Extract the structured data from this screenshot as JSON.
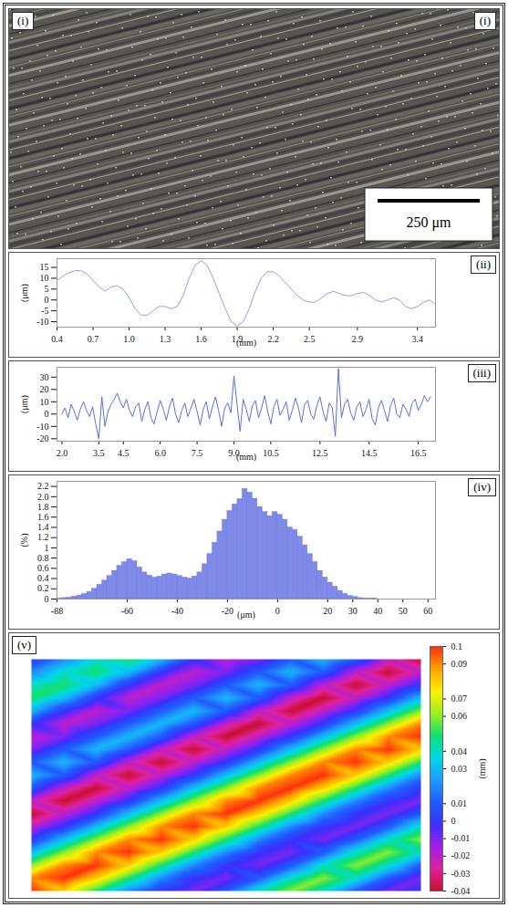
{
  "chart_data": [
    {
      "type": "image",
      "panel_labels": [
        "(i)",
        "(i)"
      ],
      "scale_bar": "250 μm"
    },
    {
      "type": "line",
      "panel_label": "(ii)",
      "xlabel": "(mm)",
      "ylabel": "(μm)",
      "color": "#8f9fe6",
      "grid": false,
      "xlim": [
        0.4,
        3.55
      ],
      "ylim": [
        -12.5,
        19
      ],
      "xticks": [
        0.4,
        0.7,
        {
          "value": 1,
          "label": "1.0"
        },
        1.3,
        1.6,
        1.9,
        2.2,
        2.5,
        2.9,
        3.4
      ],
      "yticks": [
        -10,
        -5,
        0,
        5,
        10,
        15
      ],
      "x": [
        0.4,
        0.45,
        0.5,
        0.55,
        0.6,
        0.65,
        0.7,
        0.75,
        0.8,
        0.85,
        0.9,
        0.95,
        1,
        1.05,
        1.1,
        1.15,
        1.2,
        1.25,
        1.3,
        1.35,
        1.4,
        1.45,
        1.5,
        1.55,
        1.6,
        1.65,
        1.7,
        1.75,
        1.8,
        1.85,
        1.9,
        1.95,
        2,
        2.05,
        2.1,
        2.15,
        2.2,
        2.25,
        2.3,
        2.35,
        2.4,
        2.45,
        2.5,
        2.55,
        2.6,
        2.65,
        2.7,
        2.75,
        2.8,
        2.85,
        2.9,
        2.95,
        3,
        3.05,
        3.1,
        3.15,
        3.2,
        3.25,
        3.3,
        3.35,
        3.4,
        3.45,
        3.5,
        3.55
      ],
      "values": [
        9,
        11,
        12.5,
        13.5,
        13.5,
        12,
        9,
        6,
        4,
        6,
        6.5,
        5,
        1,
        -4,
        -7,
        -7,
        -5,
        -3,
        -3,
        -4,
        -3,
        2,
        10,
        16,
        18,
        16,
        10,
        3,
        -4,
        -10,
        -12,
        -10,
        -4,
        4,
        10,
        13,
        13,
        11,
        8,
        5,
        2,
        0,
        -1,
        -1,
        1,
        3,
        4,
        3,
        2,
        2,
        3,
        3.5,
        2,
        0,
        -1,
        0,
        1,
        0,
        -3,
        -4,
        -3,
        -1,
        0,
        -2
      ]
    },
    {
      "type": "line",
      "panel_label": "(iii)",
      "xlabel": "(mm)",
      "ylabel": "(μm)",
      "color": "#5b6fdc",
      "grid": false,
      "xlim": [
        1.8,
        17.2
      ],
      "ylim": [
        -22,
        38
      ],
      "xticks": [
        {
          "value": 2,
          "label": "2.0"
        },
        3.5,
        4.5,
        {
          "value": 6,
          "label": "6.0"
        },
        7.5,
        {
          "value": 9,
          "label": "9.0"
        },
        10.5,
        12.5,
        14.5,
        16.5
      ],
      "yticks": [
        -20,
        -10,
        0,
        10,
        20,
        30
      ],
      "x": [
        2,
        2.125,
        2.25,
        2.375,
        2.5,
        2.625,
        2.75,
        2.875,
        3,
        3.125,
        3.25,
        3.375,
        3.5,
        3.625,
        3.75,
        3.875,
        4,
        4.125,
        4.25,
        4.375,
        4.5,
        4.625,
        4.75,
        4.875,
        5,
        5.125,
        5.25,
        5.375,
        5.5,
        5.625,
        5.75,
        5.875,
        6,
        6.125,
        6.25,
        6.375,
        6.5,
        6.625,
        6.75,
        6.875,
        7,
        7.125,
        7.25,
        7.375,
        7.5,
        7.625,
        7.75,
        7.875,
        8,
        8.125,
        8.25,
        8.375,
        8.5,
        8.625,
        8.75,
        8.875,
        9,
        9.125,
        9.25,
        9.375,
        9.5,
        9.625,
        9.75,
        9.875,
        10,
        10.125,
        10.25,
        10.375,
        10.5,
        10.625,
        10.75,
        10.875,
        11,
        11.125,
        11.25,
        11.375,
        11.5,
        11.625,
        11.75,
        11.875,
        12,
        12.125,
        12.25,
        12.375,
        12.5,
        12.625,
        12.75,
        12.875,
        13,
        13.125,
        13.25,
        13.375,
        13.5,
        13.625,
        13.75,
        13.875,
        14,
        14.125,
        14.25,
        14.375,
        14.5,
        14.625,
        14.75,
        14.875,
        15,
        15.125,
        15.25,
        15.375,
        15.5,
        15.625,
        15.75,
        15.875,
        16,
        16.125,
        16.25,
        16.375,
        16.5,
        16.625,
        16.75,
        16.875,
        17
      ],
      "values": [
        0,
        5,
        -3,
        8,
        2,
        -5,
        4,
        10,
        3,
        -2,
        6,
        -8,
        -20,
        14,
        -10,
        2,
        8,
        12,
        17,
        10,
        5,
        12,
        3,
        -2,
        6,
        9,
        -6,
        4,
        10,
        -3,
        -8,
        2,
        11,
        4,
        -5,
        6,
        13,
        0,
        -7,
        3,
        9,
        -2,
        5,
        12,
        2,
        -9,
        4,
        10,
        -4,
        6,
        14,
        3,
        -10,
        5,
        9,
        1,
        31,
        8,
        -14,
        12,
        4,
        -6,
        7,
        11,
        -3,
        5,
        15,
        2,
        -8,
        6,
        12,
        -1,
        4,
        10,
        -5,
        3,
        13,
        5,
        -7,
        8,
        11,
        0,
        -4,
        7,
        14,
        2,
        -6,
        9,
        5,
        -18,
        37,
        -3,
        8,
        12,
        1,
        -5,
        6,
        10,
        -2,
        4,
        12,
        -4,
        -9,
        5,
        11,
        3,
        -6,
        7,
        13,
        0,
        -3,
        8,
        4,
        -2,
        9,
        12,
        3,
        8,
        15,
        10,
        14
      ]
    },
    {
      "type": "histogram",
      "panel_label": "(iv)",
      "xlabel": "(μm)",
      "ylabel": "(%)",
      "color": "#7f8ae8",
      "grid": false,
      "xlim": [
        -88,
        63
      ],
      "ylim": [
        0,
        2.3
      ],
      "xticks": [
        -88,
        -60,
        -40,
        -20,
        0,
        20,
        30,
        40,
        50,
        60
      ],
      "yticks": [
        0,
        0.2,
        0.4,
        0.6,
        0.8,
        1,
        1.2,
        1.4,
        1.6,
        1.8,
        {
          "value": 2,
          "label": "2.0"
        },
        2.2
      ],
      "bins": [
        -88,
        -86,
        -84,
        -82,
        -80,
        -78,
        -76,
        -74,
        -72,
        -70,
        -68,
        -66,
        -64,
        -62,
        -60,
        -58,
        -56,
        -54,
        -52,
        -50,
        -48,
        -46,
        -44,
        -42,
        -40,
        -38,
        -36,
        -34,
        -32,
        -30,
        -28,
        -26,
        -24,
        -22,
        -20,
        -18,
        -16,
        -14,
        -12,
        -10,
        -8,
        -6,
        -4,
        -2,
        0,
        2,
        4,
        6,
        8,
        10,
        12,
        14,
        16,
        18,
        20,
        22,
        24,
        26,
        28,
        30,
        32,
        34,
        36,
        38,
        40,
        42,
        44,
        46,
        48,
        50,
        52,
        54,
        56,
        58,
        60
      ],
      "values": [
        0.01,
        0.02,
        0.03,
        0.05,
        0.07,
        0.1,
        0.14,
        0.2,
        0.28,
        0.36,
        0.45,
        0.55,
        0.65,
        0.72,
        0.78,
        0.74,
        0.62,
        0.52,
        0.46,
        0.42,
        0.44,
        0.48,
        0.5,
        0.48,
        0.45,
        0.42,
        0.4,
        0.44,
        0.52,
        0.68,
        0.88,
        1.1,
        1.32,
        1.55,
        1.72,
        1.85,
        1.95,
        2.15,
        2.08,
        1.96,
        1.8,
        1.7,
        1.62,
        1.7,
        1.65,
        1.55,
        1.4,
        1.35,
        1.22,
        1.05,
        0.88,
        0.72,
        0.55,
        0.42,
        0.32,
        0.24,
        0.16,
        0.1,
        0.06,
        0.04,
        0.02,
        0.01,
        0.01,
        0.005,
        0,
        0,
        0,
        0,
        0,
        0,
        0,
        0,
        0,
        0
      ]
    },
    {
      "type": "heatmap",
      "panel_label": "(v)",
      "z": [
        [
          0,
          0.02,
          0.04,
          0.05,
          0.03,
          0,
          -0.02,
          -0.01,
          0.01,
          0.03,
          0.01,
          -0.02,
          -0.04
        ],
        [
          0.02,
          0.04,
          0.05,
          0.03,
          0,
          -0.02,
          -0.01,
          0.01,
          0.03,
          0.01,
          -0.02,
          -0.04,
          -0.02
        ],
        [
          0.04,
          0.05,
          0.03,
          0,
          -0.02,
          -0.01,
          0.01,
          0.03,
          0.01,
          -0.02,
          -0.04,
          -0.02,
          0
        ],
        [
          0.05,
          0.03,
          0,
          -0.02,
          -0.01,
          0.01,
          0.03,
          0.01,
          -0.02,
          -0.04,
          -0.02,
          0,
          0.03
        ],
        [
          0.03,
          0,
          -0.02,
          -0.01,
          0.01,
          0.03,
          0.01,
          -0.02,
          -0.04,
          -0.02,
          0,
          0.03,
          0.06
        ],
        [
          0,
          -0.02,
          -0.01,
          0.01,
          0.03,
          0.01,
          -0.02,
          -0.04,
          -0.02,
          0,
          0.03,
          0.06,
          0.09
        ],
        [
          -0.02,
          -0.01,
          0.01,
          0.03,
          0.01,
          -0.02,
          -0.04,
          -0.02,
          0,
          0.03,
          0.06,
          0.09,
          0.1
        ],
        [
          -0.01,
          0.01,
          0.03,
          0.01,
          -0.02,
          -0.04,
          -0.02,
          0,
          0.03,
          0.06,
          0.09,
          0.1,
          0.08
        ],
        [
          0.01,
          0.03,
          0.01,
          -0.02,
          -0.04,
          -0.02,
          0,
          0.03,
          0.06,
          0.09,
          0.1,
          0.08,
          0.05
        ],
        [
          0.03,
          0.01,
          -0.02,
          -0.04,
          -0.02,
          0,
          0.03,
          0.06,
          0.09,
          0.1,
          0.08,
          0.05,
          0.02
        ],
        [
          0.01,
          -0.02,
          -0.04,
          -0.02,
          0,
          0.03,
          0.06,
          0.09,
          0.1,
          0.08,
          0.05,
          0.02,
          0
        ],
        [
          -0.02,
          -0.04,
          -0.02,
          0,
          0.03,
          0.06,
          0.09,
          0.1,
          0.08,
          0.05,
          0.02,
          0,
          -0.01
        ],
        [
          -0.04,
          -0.02,
          0,
          0.03,
          0.06,
          0.09,
          0.1,
          0.08,
          0.05,
          0.02,
          0,
          -0.01,
          0.01
        ],
        [
          -0.02,
          0,
          0.03,
          0.06,
          0.09,
          0.1,
          0.08,
          0.05,
          0.02,
          0,
          -0.01,
          0.01,
          0.04
        ],
        [
          0,
          0.03,
          0.06,
          0.09,
          0.1,
          0.08,
          0.05,
          0.02,
          0,
          -0.01,
          0.01,
          0.04,
          0.06
        ],
        [
          0.03,
          0.06,
          0.09,
          0.1,
          0.08,
          0.05,
          0.02,
          0,
          -0.01,
          0.01,
          0.04,
          0.06,
          0.04
        ],
        [
          0.06,
          0.09,
          0.1,
          0.08,
          0.05,
          0.02,
          0,
          -0.01,
          0.01,
          0.04,
          0.06,
          0.04,
          0.01
        ],
        [
          0.09,
          0.1,
          0.08,
          0.05,
          0.02,
          0,
          -0.01,
          0.01,
          0.04,
          0.06,
          0.04,
          0.01,
          -0.01
        ],
        [
          0.1,
          0.08,
          0.05,
          0.02,
          0,
          -0.01,
          0.01,
          0.04,
          0.06,
          0.04,
          0.01,
          -0.01,
          0
        ]
      ],
      "colorbar": {
        "range": [
          -0.04,
          0.1
        ],
        "ticks": [
          0.1,
          0.09,
          0.07,
          0.06,
          0.04,
          0.03,
          0.01,
          0,
          -0.01,
          -0.02,
          -0.03,
          -0.04
        ],
        "label": "(mm)"
      }
    }
  ]
}
